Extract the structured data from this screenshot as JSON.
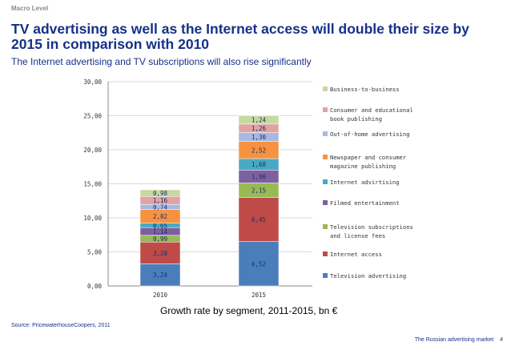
{
  "header": {
    "section": "Macro Level",
    "title": "TV advertising as well as the Internet access will double their size by 2015 in comparison with 2010",
    "subtitle": "The Internet advertising and TV subscriptions will also rise significantly"
  },
  "caption": "Growth rate by segment, 2011-2015, bn €",
  "source": "Source: PricewaterhouseCoopers, 2011",
  "footer": {
    "doc": "The Russian advertising market",
    "page": "4"
  },
  "chart_data": {
    "type": "bar",
    "stacked": true,
    "categories": [
      "2010",
      "2015"
    ],
    "ylim": [
      0,
      30
    ],
    "yticks": [
      "0,00",
      "5,00",
      "10,00",
      "15,00",
      "20,00",
      "25,00",
      "30,00"
    ],
    "grid": true,
    "legend_position": "right",
    "series": [
      {
        "name": "Television advertising",
        "values": [
          3.24,
          6.52
        ],
        "labels": [
          "3,24",
          "6,52"
        ],
        "color": "#4a7ebb"
      },
      {
        "name": "Internet access",
        "values": [
          3.2,
          6.45
        ],
        "labels": [
          "3,20",
          "6,45"
        ],
        "color": "#be4b48"
      },
      {
        "name": "Television subscriptions and license fees",
        "values": [
          0.99,
          2.15
        ],
        "labels": [
          "0,99",
          "2,15"
        ],
        "color": "#98b954"
      },
      {
        "name": "Filmed entertainment",
        "values": [
          1.14,
          1.9
        ],
        "labels": [
          "1,14",
          "1,90"
        ],
        "color": "#7d60a0"
      },
      {
        "name": "Internet advirtising",
        "values": [
          0.65,
          1.68
        ],
        "labels": [
          "0,65",
          "1,68"
        ],
        "color": "#46aac5"
      },
      {
        "name": "Newspaper and consumer magazine publishing",
        "values": [
          2.02,
          2.52
        ],
        "labels": [
          "2,02",
          "2,52"
        ],
        "color": "#f69240"
      },
      {
        "name": "Out-of-home advertising",
        "values": [
          0.74,
          1.3
        ],
        "labels": [
          "0,74",
          "1,30"
        ],
        "color": "#a7b9e3"
      },
      {
        "name": "Consumer and educational book publishing",
        "values": [
          1.16,
          1.26
        ],
        "labels": [
          "1,16",
          "1,26"
        ],
        "color": "#e0a3a2"
      },
      {
        "name": "Business-to-business",
        "values": [
          0.98,
          1.24
        ],
        "labels": [
          "0,98",
          "1,24"
        ],
        "color": "#c6d9a0"
      }
    ]
  }
}
